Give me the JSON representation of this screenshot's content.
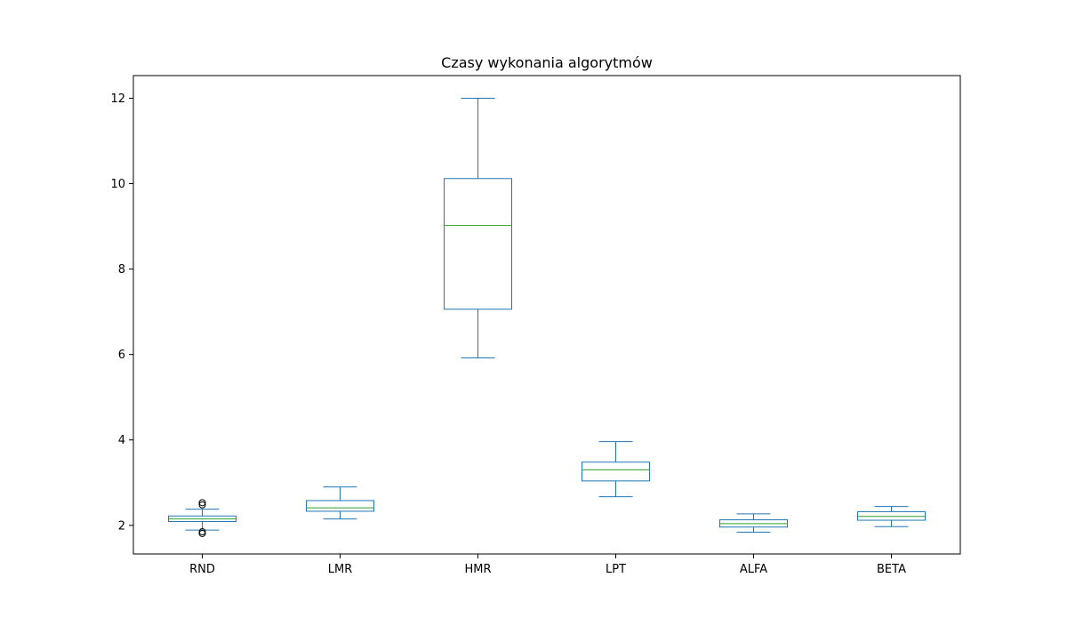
{
  "chart_data": {
    "type": "boxplot",
    "title": "Czasy wykonania algorytmów",
    "xlabel": "",
    "ylabel": "",
    "categories": [
      "RND",
      "LMR",
      "HMR",
      "LPT",
      "ALFA",
      "BETA"
    ],
    "boxes": [
      {
        "label": "RND",
        "whisker_low": 1.89,
        "q1": 2.09,
        "median": 2.15,
        "q3": 2.22,
        "whisker_high": 2.38,
        "outliers": [
          1.81,
          1.85,
          2.48,
          2.53
        ]
      },
      {
        "label": "LMR",
        "whisker_low": 2.15,
        "q1": 2.33,
        "median": 2.41,
        "q3": 2.58,
        "whisker_high": 2.9,
        "outliers": []
      },
      {
        "label": "HMR",
        "whisker_low": 5.92,
        "q1": 7.06,
        "median": 9.02,
        "q3": 10.12,
        "whisker_high": 12.0,
        "outliers": []
      },
      {
        "label": "LPT",
        "whisker_low": 2.67,
        "q1": 3.04,
        "median": 3.3,
        "q3": 3.48,
        "whisker_high": 3.96,
        "outliers": []
      },
      {
        "label": "ALFA",
        "whisker_low": 1.84,
        "q1": 1.96,
        "median": 2.04,
        "q3": 2.13,
        "whisker_high": 2.27,
        "outliers": []
      },
      {
        "label": "BETA",
        "whisker_low": 1.97,
        "q1": 2.12,
        "median": 2.21,
        "q3": 2.32,
        "whisker_high": 2.44,
        "outliers": []
      }
    ],
    "ylim": [
      1.33,
      12.53
    ],
    "yticks": [
      2,
      4,
      6,
      8,
      10,
      12
    ],
    "grid": false,
    "colors": {
      "box": "#1f77b4",
      "median": "#2ca02c",
      "outlier": "#000000",
      "axes": "#000000"
    }
  }
}
